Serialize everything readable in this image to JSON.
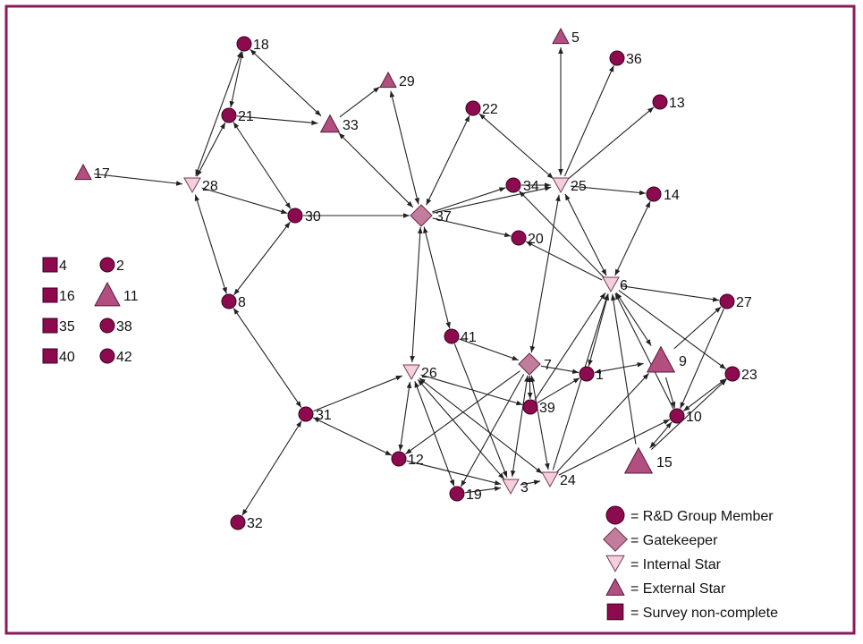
{
  "colors": {
    "frame": "#8b1a5a",
    "member": "#8e0a4e",
    "gatekeeper": "#c27c9c",
    "internal_star": "#f3cfdb",
    "external_star": "#b24f80",
    "non_complete": "#8e0a4e",
    "edge": "#222222"
  },
  "nodes": [
    {
      "id": "18",
      "label": "18",
      "role": "member"
    },
    {
      "id": "21",
      "label": "21",
      "role": "member"
    },
    {
      "id": "33",
      "label": "33",
      "role": "external_star"
    },
    {
      "id": "29",
      "label": "29",
      "role": "external_star"
    },
    {
      "id": "5",
      "label": "5",
      "role": "external_star"
    },
    {
      "id": "36",
      "label": "36",
      "role": "member"
    },
    {
      "id": "13",
      "label": "13",
      "role": "member"
    },
    {
      "id": "22",
      "label": "22",
      "role": "member"
    },
    {
      "id": "17",
      "label": "17",
      "role": "external_star"
    },
    {
      "id": "28",
      "label": "28",
      "role": "internal_star"
    },
    {
      "id": "34",
      "label": "34",
      "role": "member"
    },
    {
      "id": "25",
      "label": "25",
      "role": "internal_star"
    },
    {
      "id": "14",
      "label": "14",
      "role": "member"
    },
    {
      "id": "30",
      "label": "30",
      "role": "member"
    },
    {
      "id": "37",
      "label": "37",
      "role": "gatekeeper"
    },
    {
      "id": "20",
      "label": "20",
      "role": "member"
    },
    {
      "id": "6",
      "label": "6",
      "role": "internal_star"
    },
    {
      "id": "27",
      "label": "27",
      "role": "member"
    },
    {
      "id": "8",
      "label": "8",
      "role": "member"
    },
    {
      "id": "41",
      "label": "41",
      "role": "member"
    },
    {
      "id": "9",
      "label": "9",
      "role": "external_star"
    },
    {
      "id": "7",
      "label": "7",
      "role": "gatekeeper"
    },
    {
      "id": "1",
      "label": "1",
      "role": "member"
    },
    {
      "id": "23",
      "label": "23",
      "role": "member"
    },
    {
      "id": "26",
      "label": "26",
      "role": "internal_star"
    },
    {
      "id": "39",
      "label": "39",
      "role": "member"
    },
    {
      "id": "10",
      "label": "10",
      "role": "member"
    },
    {
      "id": "31",
      "label": "31",
      "role": "member"
    },
    {
      "id": "15",
      "label": "15",
      "role": "external_star"
    },
    {
      "id": "12",
      "label": "12",
      "role": "member"
    },
    {
      "id": "24",
      "label": "24",
      "role": "internal_star"
    },
    {
      "id": "19",
      "label": "19",
      "role": "member"
    },
    {
      "id": "3",
      "label": "3",
      "role": "internal_star"
    },
    {
      "id": "32",
      "label": "32",
      "role": "member"
    }
  ],
  "edges": [
    [
      "21",
      "18",
      "both"
    ],
    [
      "18",
      "33",
      "both"
    ],
    [
      "21",
      "33",
      "fwd"
    ],
    [
      "33",
      "29",
      "fwd"
    ],
    [
      "28",
      "18",
      "both"
    ],
    [
      "28",
      "21",
      "both"
    ],
    [
      "17",
      "28",
      "fwd"
    ],
    [
      "21",
      "30",
      "both"
    ],
    [
      "28",
      "30",
      "fwd"
    ],
    [
      "28",
      "8",
      "both"
    ],
    [
      "8",
      "30",
      "both"
    ],
    [
      "30",
      "37",
      "fwd"
    ],
    [
      "37",
      "33",
      "both"
    ],
    [
      "37",
      "29",
      "both"
    ],
    [
      "37",
      "22",
      "both"
    ],
    [
      "37",
      "34",
      "fwd"
    ],
    [
      "37",
      "25",
      "fwd"
    ],
    [
      "37",
      "20",
      "fwd"
    ],
    [
      "37",
      "41",
      "both"
    ],
    [
      "37",
      "26",
      "both"
    ],
    [
      "25",
      "22",
      "both"
    ],
    [
      "25",
      "5",
      "both"
    ],
    [
      "25",
      "36",
      "fwd"
    ],
    [
      "25",
      "13",
      "fwd"
    ],
    [
      "34",
      "25",
      "fwd"
    ],
    [
      "25",
      "14",
      "fwd"
    ],
    [
      "25",
      "6",
      "both"
    ],
    [
      "6",
      "34",
      "fwd"
    ],
    [
      "6",
      "20",
      "fwd"
    ],
    [
      "6",
      "14",
      "both"
    ],
    [
      "6",
      "27",
      "fwd"
    ],
    [
      "6",
      "23",
      "fwd"
    ],
    [
      "9",
      "6",
      "both"
    ],
    [
      "10",
      "6",
      "fwd"
    ],
    [
      "15",
      "6",
      "fwd"
    ],
    [
      "7",
      "25",
      "both"
    ],
    [
      "6",
      "1",
      "both"
    ],
    [
      "9",
      "27",
      "fwd"
    ],
    [
      "23",
      "10",
      "both"
    ],
    [
      "27",
      "10",
      "fwd"
    ],
    [
      "9",
      "10",
      "fwd"
    ],
    [
      "15",
      "23",
      "fwd"
    ],
    [
      "10",
      "15",
      "both"
    ],
    [
      "41",
      "7",
      "fwd"
    ],
    [
      "7",
      "1",
      "fwd"
    ],
    [
      "9",
      "1",
      "both"
    ],
    [
      "7",
      "39",
      "both"
    ],
    [
      "39",
      "1",
      "fwd"
    ],
    [
      "39",
      "6",
      "fwd"
    ],
    [
      "7",
      "12",
      "fwd"
    ],
    [
      "7",
      "19",
      "fwd"
    ],
    [
      "3",
      "7",
      "both"
    ],
    [
      "7",
      "24",
      "both"
    ],
    [
      "24",
      "6",
      "fwd"
    ],
    [
      "24",
      "9",
      "fwd"
    ],
    [
      "24",
      "10",
      "fwd"
    ],
    [
      "26",
      "39",
      "fwd"
    ],
    [
      "26",
      "24",
      "both"
    ],
    [
      "26",
      "19",
      "both"
    ],
    [
      "26",
      "3",
      "both"
    ],
    [
      "26",
      "12",
      "both"
    ],
    [
      "41",
      "3",
      "fwd"
    ],
    [
      "31",
      "26",
      "fwd"
    ],
    [
      "31",
      "12",
      "both"
    ],
    [
      "12",
      "3",
      "fwd"
    ],
    [
      "19",
      "3",
      "fwd"
    ],
    [
      "3",
      "24",
      "fwd"
    ],
    [
      "8",
      "31",
      "both"
    ],
    [
      "31",
      "32",
      "both"
    ]
  ],
  "key_nodes": [
    {
      "shape": "square",
      "label": "4"
    },
    {
      "shape": "circle",
      "label": "2"
    },
    {
      "shape": "square",
      "label": "16"
    },
    {
      "shape": "triangle",
      "label": "11"
    },
    {
      "shape": "square",
      "label": "35"
    },
    {
      "shape": "circle",
      "label": "38"
    },
    {
      "shape": "square",
      "label": "40"
    },
    {
      "shape": "circle",
      "label": "42"
    }
  ],
  "legend": [
    {
      "shape": "circle",
      "role": "member",
      "text": "= R&D Group Member"
    },
    {
      "shape": "diamond",
      "role": "gatekeeper",
      "text": "= Gatekeeper"
    },
    {
      "shape": "triangle-down",
      "role": "internal_star",
      "text": "= Internal Star"
    },
    {
      "shape": "triangle-up",
      "role": "external_star",
      "text": "= External Star"
    },
    {
      "shape": "square",
      "role": "non_complete",
      "text": "= Survey non-complete"
    }
  ]
}
